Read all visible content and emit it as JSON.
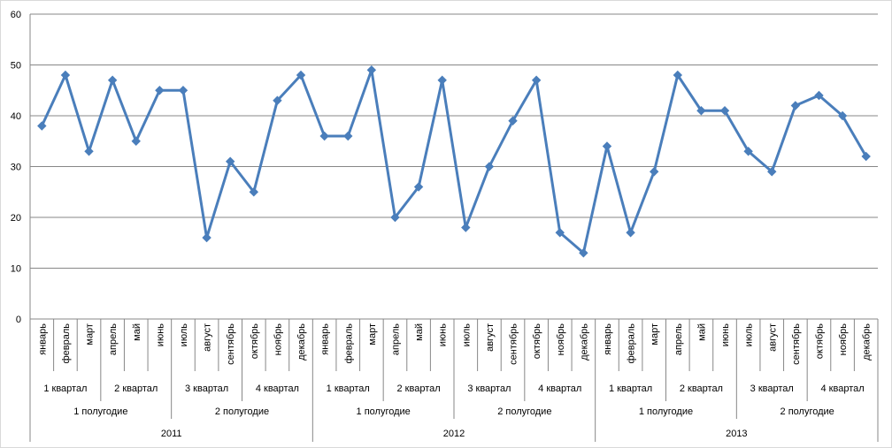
{
  "chart_data": {
    "type": "line",
    "title": "",
    "xlabel": "",
    "ylabel": "",
    "ylim": [
      0,
      60
    ],
    "yticks": [
      "0",
      "10",
      "20",
      "30",
      "40",
      "50",
      "60"
    ],
    "grid": true,
    "legend": "none",
    "series_color": "#4a7ebb",
    "categories": [
      "январь",
      "февраль",
      "март",
      "апрель",
      "май",
      "июнь",
      "июль",
      "август",
      "сентябрь",
      "октябрь",
      "ноябрь",
      "декабрь",
      "январь",
      "февраль",
      "март",
      "апрель",
      "май",
      "июнь",
      "июль",
      "август",
      "сентябрь",
      "октябрь",
      "ноябрь",
      "декабрь",
      "январь",
      "февраль",
      "март",
      "апрель",
      "май",
      "июнь",
      "июль",
      "август",
      "сентябрь",
      "октябрь",
      "ноябрь",
      "декабрь"
    ],
    "quarters": [
      "1 квартал",
      "2 квартал",
      "3 квартал",
      "4 квартал",
      "1 квартал",
      "2 квартал",
      "3 квартал",
      "4 квартал",
      "1 квартал",
      "2 квартал",
      "3 квартал",
      "4 квартал"
    ],
    "halves": [
      "1 полугодие",
      "2 полугодие",
      "1 полугодие",
      "2 полугодие",
      "1 полугодие",
      "2 полугодие"
    ],
    "years": [
      "2011",
      "2012",
      "2013"
    ],
    "series": [
      {
        "values": [
          38,
          48,
          33,
          47,
          35,
          45,
          45,
          16,
          31,
          25,
          43,
          48,
          36,
          36,
          49,
          20,
          26,
          47,
          18,
          30,
          39,
          47,
          17,
          13,
          34,
          17,
          29,
          48,
          41,
          41,
          33,
          29,
          42,
          44,
          40,
          32
        ]
      }
    ]
  }
}
